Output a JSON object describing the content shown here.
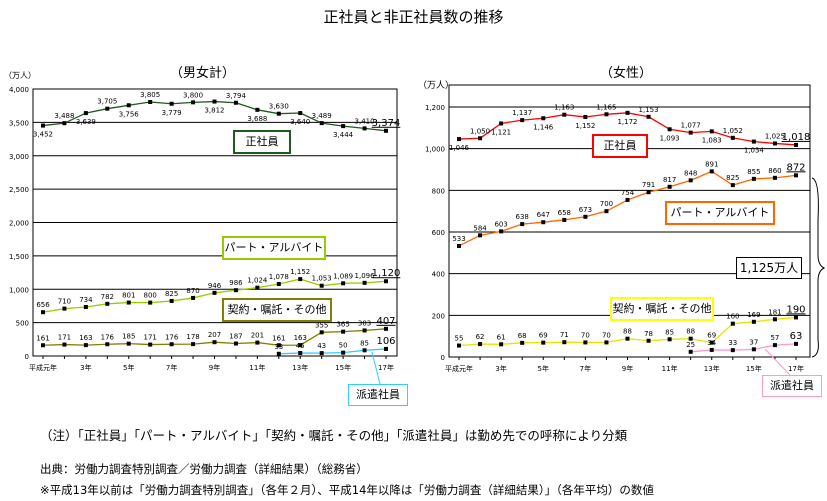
{
  "title": "正社員と非正社員数の推移",
  "notes": {
    "note": "（注）「正社員」「パート・アルバイト」「契約・嘱託・その他」「派遣社員」は勤め先での呼称により分類",
    "source": "出典：労働力調査特別調査／労働力調査（詳細結果）（総務省）",
    "remark": "※平成13年以前は「労働力調査特別調査」（各年２月）、平成14年以降は「労働力調査（詳細結果）」（各年平均）の数値"
  },
  "chart_data": [
    {
      "type": "line",
      "title": "（男女計）",
      "ylabel": "（万人）",
      "ylim": [
        0,
        4000
      ],
      "yticks": [
        0,
        500,
        1000,
        1500,
        2000,
        2500,
        3000,
        3500,
        4000
      ],
      "grid": true,
      "x": [
        1,
        2,
        3,
        4,
        5,
        6,
        7,
        8,
        9,
        10,
        11,
        12,
        13,
        14,
        15,
        16,
        17
      ],
      "xtick_labels": [
        "平成元年",
        "",
        "3年",
        "",
        "5年",
        "",
        "7年",
        "",
        "9年",
        "",
        "11年",
        "",
        "13年",
        "",
        "15年",
        "",
        "17年"
      ],
      "series": [
        {
          "name": "正社員",
          "color": "#1f5a1f",
          "values": [
            3452,
            3488,
            3639,
            3705,
            3756,
            3805,
            3779,
            3800,
            3812,
            3794,
            3688,
            3630,
            3640,
            3489,
            3444,
            3410,
            3374
          ]
        },
        {
          "name": "パート・アルバイト",
          "color": "#99cc00",
          "values": [
            656,
            710,
            734,
            782,
            801,
            800,
            825,
            870,
            946,
            986,
            1024,
            1078,
            1152,
            1053,
            1089,
            1096,
            1120
          ]
        },
        {
          "name": "契約・嘱託・その他",
          "color": "#808000",
          "values": [
            161,
            171,
            163,
            176,
            185,
            171,
            176,
            178,
            207,
            187,
            201,
            161,
            163,
            355,
            365,
            383,
            407
          ]
        },
        {
          "name": "派遣社員",
          "color": "#33ccff",
          "values": [
            null,
            null,
            null,
            null,
            null,
            null,
            null,
            null,
            null,
            null,
            null,
            33,
            45,
            43,
            50,
            85,
            106
          ]
        }
      ]
    },
    {
      "type": "line",
      "title": "（女性）",
      "ylabel": "（万人）",
      "ylim": [
        0,
        1200
      ],
      "yticks": [
        0,
        200,
        400,
        600,
        800,
        1000,
        1200
      ],
      "grid": true,
      "x": [
        1,
        2,
        3,
        4,
        5,
        6,
        7,
        8,
        9,
        10,
        11,
        12,
        13,
        14,
        15,
        16,
        17
      ],
      "xtick_labels": [
        "平成元年",
        "",
        "3年",
        "",
        "5年",
        "",
        "7年",
        "",
        "9年",
        "",
        "11年",
        "",
        "13年",
        "",
        "15年",
        "",
        "17年"
      ],
      "annotation": "1,125万人",
      "series": [
        {
          "name": "正社員",
          "color": "#ff0000",
          "values": [
            1046,
            1050,
            1121,
            1137,
            1146,
            1163,
            1152,
            1165,
            1172,
            1153,
            1093,
            1077,
            1083,
            1052,
            1034,
            1025,
            1018
          ]
        },
        {
          "name": "パート・アルバイト",
          "color": "#ff6600",
          "values": [
            533,
            584,
            603,
            638,
            647,
            658,
            673,
            700,
            754,
            791,
            817,
            848,
            891,
            825,
            855,
            860,
            872
          ]
        },
        {
          "name": "契約・嘱託・その他",
          "color": "#e6e600",
          "values": [
            55,
            62,
            61,
            68,
            69,
            71,
            70,
            70,
            88,
            78,
            85,
            88,
            69,
            160,
            169,
            181,
            190
          ]
        },
        {
          "name": "派遣社員",
          "color": "#ff99cc",
          "values": [
            null,
            null,
            null,
            null,
            null,
            null,
            null,
            null,
            null,
            null,
            null,
            25,
            34,
            33,
            37,
            57,
            63
          ]
        }
      ]
    }
  ]
}
